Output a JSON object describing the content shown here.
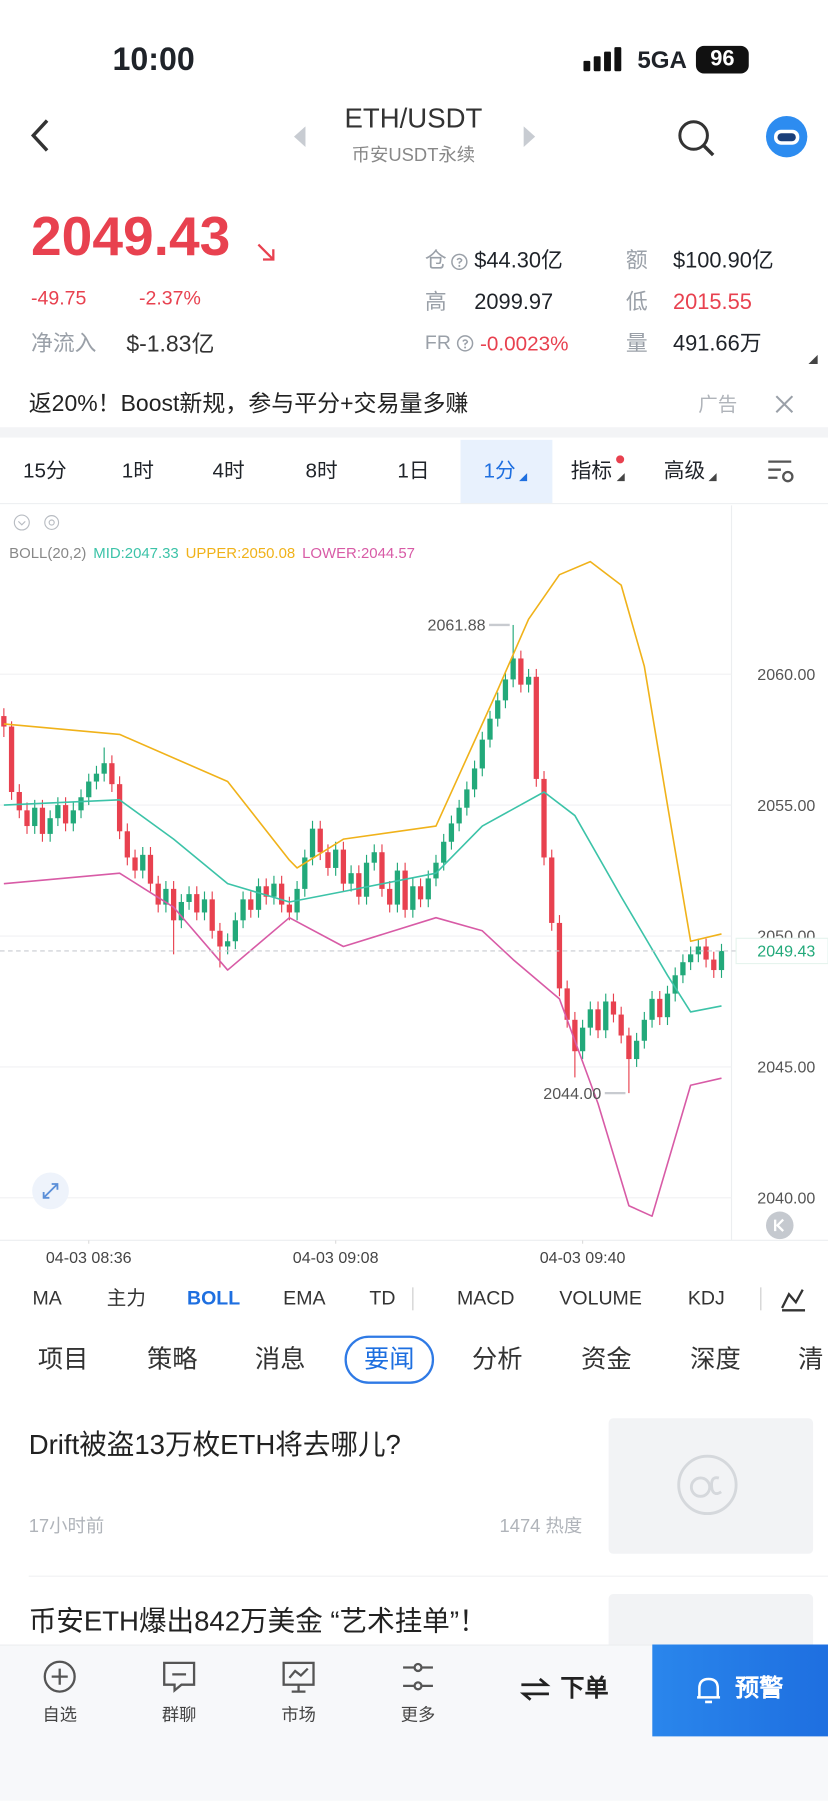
{
  "status": {
    "time": "10:00",
    "network": "5GA",
    "battery": "96"
  },
  "header": {
    "title": "ETH/USDT",
    "subtitle": "币安USDT永续"
  },
  "ticker": {
    "price": "2049.43",
    "change": "-49.75",
    "change_pct": "-2.37%",
    "inflow_label": "净流入",
    "inflow": "$-1.83亿",
    "stats": [
      {
        "label": "仓",
        "value": "$44.30亿"
      },
      {
        "label": "额",
        "value": "$100.90亿"
      },
      {
        "label": "高",
        "value": "2099.97"
      },
      {
        "label": "低",
        "value": "2015.55"
      },
      {
        "label": "FR",
        "value": "-0.0023%"
      },
      {
        "label": "量",
        "value": "491.66万"
      }
    ]
  },
  "banner": {
    "text": "返20%！Boost新规，参与平分+交易量多赚",
    "ad": "广告"
  },
  "intervals": [
    "15分",
    "1时",
    "4时",
    "8时",
    "1日",
    "1分",
    "指标",
    "高级"
  ],
  "chart": {
    "type": "candlestick",
    "indicator": "BOLL(20,2)",
    "up_color": "#22a97a",
    "down_color": "#e8414f",
    "xlim": [
      -0.5,
      94.3
    ],
    "ylim": [
      2038.38,
      2066.45
    ],
    "yticks": [
      {
        "value": 2040,
        "label": "2040.00"
      },
      {
        "value": 2045,
        "label": "2045.00"
      },
      {
        "value": 2050,
        "label": "2050.00"
      },
      {
        "value": 2055,
        "label": "2055.00"
      },
      {
        "value": 2060,
        "label": "2060.00"
      }
    ],
    "xticks": [
      {
        "value": 11,
        "label": "04-03 08:36"
      },
      {
        "value": 43,
        "label": "04-03 09:08"
      },
      {
        "value": 75,
        "label": "04-03 09:40"
      }
    ],
    "last": {
      "value": 2049.43,
      "label": "2049.43"
    },
    "high_label": "2061.88",
    "low_label": "2044.00",
    "grid": true,
    "ohlc": [
      [
        2058.4,
        2058.7,
        2057.6,
        2058.0
      ],
      [
        2058.0,
        2058.2,
        2055.2,
        2055.5
      ],
      [
        2055.5,
        2055.8,
        2054.5,
        2054.8
      ],
      [
        2054.8,
        2055.1,
        2053.9,
        2054.2
      ],
      [
        2054.2,
        2055.2,
        2053.9,
        2054.9
      ],
      [
        2054.9,
        2055.2,
        2053.6,
        2053.9
      ],
      [
        2053.9,
        2054.8,
        2053.6,
        2054.5
      ],
      [
        2054.5,
        2055.3,
        2054.2,
        2055.0
      ],
      [
        2055.0,
        2055.3,
        2054.0,
        2054.3
      ],
      [
        2054.3,
        2055.1,
        2054.0,
        2054.8
      ],
      [
        2054.8,
        2055.6,
        2054.5,
        2055.3
      ],
      [
        2055.3,
        2056.2,
        2055.0,
        2055.9
      ],
      [
        2055.9,
        2056.5,
        2055.6,
        2056.2
      ],
      [
        2056.2,
        2057.2,
        2055.9,
        2056.6
      ],
      [
        2056.6,
        2056.9,
        2055.5,
        2055.8
      ],
      [
        2055.8,
        2056.1,
        2053.7,
        2054.0
      ],
      [
        2054.0,
        2054.3,
        2052.7,
        2053.0
      ],
      [
        2053.0,
        2053.3,
        2052.2,
        2052.5
      ],
      [
        2052.5,
        2053.4,
        2052.2,
        2053.1
      ],
      [
        2053.1,
        2053.4,
        2051.7,
        2052.0
      ],
      [
        2052.0,
        2052.3,
        2050.9,
        2051.2
      ],
      [
        2051.2,
        2052.1,
        2050.9,
        2051.8
      ],
      [
        2051.8,
        2052.1,
        2049.3,
        2050.6
      ],
      [
        2050.6,
        2051.6,
        2050.3,
        2051.3
      ],
      [
        2051.3,
        2051.9,
        2051.0,
        2051.6
      ],
      [
        2051.6,
        2051.9,
        2050.6,
        2050.9
      ],
      [
        2050.9,
        2051.7,
        2050.6,
        2051.4
      ],
      [
        2051.4,
        2051.7,
        2049.9,
        2050.2
      ],
      [
        2050.2,
        2050.5,
        2048.8,
        2049.6
      ],
      [
        2049.6,
        2050.1,
        2049.3,
        2049.8
      ],
      [
        2049.8,
        2050.9,
        2049.5,
        2050.6
      ],
      [
        2050.6,
        2051.7,
        2050.3,
        2051.4
      ],
      [
        2051.4,
        2051.7,
        2050.7,
        2051.0
      ],
      [
        2051.0,
        2052.2,
        2050.7,
        2051.9
      ],
      [
        2051.9,
        2052.2,
        2051.2,
        2051.5
      ],
      [
        2051.5,
        2052.3,
        2051.2,
        2052.0
      ],
      [
        2052.0,
        2052.3,
        2050.9,
        2051.2
      ],
      [
        2051.2,
        2051.5,
        2050.6,
        2050.9
      ],
      [
        2050.9,
        2052.1,
        2050.6,
        2051.8
      ],
      [
        2051.8,
        2053.3,
        2051.5,
        2053.0
      ],
      [
        2053.0,
        2054.4,
        2052.7,
        2054.1
      ],
      [
        2054.1,
        2054.4,
        2052.9,
        2053.2
      ],
      [
        2053.2,
        2053.5,
        2052.3,
        2052.6
      ],
      [
        2052.6,
        2053.6,
        2052.3,
        2053.3
      ],
      [
        2053.3,
        2053.6,
        2051.7,
        2052.0
      ],
      [
        2052.0,
        2052.7,
        2051.7,
        2052.4
      ],
      [
        2052.4,
        2052.7,
        2051.2,
        2051.5
      ],
      [
        2051.5,
        2053.1,
        2051.2,
        2052.8
      ],
      [
        2052.8,
        2053.5,
        2052.5,
        2053.2
      ],
      [
        2053.2,
        2053.5,
        2051.5,
        2051.8
      ],
      [
        2051.8,
        2052.1,
        2050.9,
        2051.2
      ],
      [
        2051.2,
        2052.8,
        2050.9,
        2052.5
      ],
      [
        2052.5,
        2052.8,
        2050.7,
        2051.0
      ],
      [
        2051.0,
        2052.2,
        2050.7,
        2051.9
      ],
      [
        2051.9,
        2052.2,
        2051.1,
        2051.4
      ],
      [
        2051.4,
        2052.5,
        2051.1,
        2052.2
      ],
      [
        2052.2,
        2053.1,
        2051.9,
        2052.8
      ],
      [
        2052.8,
        2053.9,
        2052.5,
        2053.6
      ],
      [
        2053.6,
        2054.6,
        2053.3,
        2054.3
      ],
      [
        2054.3,
        2055.2,
        2054.0,
        2054.9
      ],
      [
        2054.9,
        2055.9,
        2054.6,
        2055.6
      ],
      [
        2055.6,
        2056.7,
        2055.3,
        2056.4
      ],
      [
        2056.4,
        2057.8,
        2056.1,
        2057.5
      ],
      [
        2057.5,
        2058.6,
        2057.2,
        2058.3
      ],
      [
        2058.3,
        2059.3,
        2058.0,
        2059.0
      ],
      [
        2059.0,
        2060.1,
        2058.7,
        2059.8
      ],
      [
        2059.8,
        2061.88,
        2059.5,
        2060.6
      ],
      [
        2060.6,
        2060.9,
        2059.3,
        2059.6
      ],
      [
        2059.6,
        2060.2,
        2059.3,
        2059.9
      ],
      [
        2059.9,
        2060.2,
        2055.7,
        2056.0
      ],
      [
        2056.0,
        2056.3,
        2052.7,
        2053.0
      ],
      [
        2053.0,
        2053.3,
        2050.2,
        2050.5
      ],
      [
        2050.5,
        2050.8,
        2047.7,
        2048.0
      ],
      [
        2048.0,
        2048.3,
        2046.5,
        2046.8
      ],
      [
        2046.8,
        2047.1,
        2044.6,
        2045.6
      ],
      [
        2045.6,
        2046.8,
        2045.3,
        2046.5
      ],
      [
        2046.5,
        2047.5,
        2046.2,
        2047.2
      ],
      [
        2047.2,
        2047.5,
        2046.1,
        2046.4
      ],
      [
        2046.4,
        2047.8,
        2046.1,
        2047.5
      ],
      [
        2047.5,
        2047.8,
        2046.7,
        2047.0
      ],
      [
        2047.0,
        2047.3,
        2045.9,
        2046.2
      ],
      [
        2046.2,
        2046.5,
        2044.0,
        2045.3
      ],
      [
        2045.3,
        2046.3,
        2045.0,
        2046.0
      ],
      [
        2046.0,
        2047.1,
        2045.7,
        2046.8
      ],
      [
        2046.8,
        2047.9,
        2046.5,
        2047.6
      ],
      [
        2047.6,
        2047.9,
        2046.6,
        2046.9
      ],
      [
        2046.9,
        2048.1,
        2046.6,
        2047.8
      ],
      [
        2047.8,
        2048.8,
        2047.5,
        2048.5
      ],
      [
        2048.5,
        2049.3,
        2048.2,
        2049.0
      ],
      [
        2049.0,
        2049.6,
        2048.7,
        2049.3
      ],
      [
        2049.3,
        2049.9,
        2049.0,
        2049.6
      ],
      [
        2049.6,
        2049.9,
        2048.8,
        2049.1
      ],
      [
        2049.1,
        2049.4,
        2048.4,
        2048.7
      ],
      [
        2048.7,
        2049.7,
        2048.4,
        2049.43
      ]
    ],
    "bands": [
      {
        "name": "MID:2047.33",
        "color": "#3cc3a8",
        "x": [
          0,
          15,
          22,
          29,
          37,
          44,
          56,
          62,
          70,
          74,
          80,
          86,
          89,
          93
        ],
        "values": [
          2055,
          2055.2,
          2053.7,
          2052,
          2051.3,
          2051.7,
          2052.4,
          2054.2,
          2055.5,
          2054.6,
          2051.5,
          2048.5,
          2047.1,
          2047.33
        ]
      },
      {
        "name": "UPPER:2050.08",
        "color": "#f0b21a",
        "x": [
          0,
          15,
          29,
          37,
          38,
          44,
          56,
          64,
          68,
          72,
          76,
          80,
          83,
          86,
          89,
          93
        ],
        "values": [
          2058.1,
          2057.7,
          2055.9,
          2052.9,
          2052.6,
          2053.7,
          2054.2,
          2059.4,
          2062.1,
          2063.8,
          2064.3,
          2063.4,
          2060.3,
          2055,
          2049.8,
          2050.08
        ]
      },
      {
        "name": "LOWER:2044.57",
        "color": "#d85ba6",
        "x": [
          0,
          15,
          22,
          29,
          37,
          44,
          56,
          62,
          66,
          72,
          77,
          81,
          84,
          89,
          93
        ],
        "values": [
          2052,
          2052.4,
          2051.1,
          2048.7,
          2050.7,
          2049.6,
          2050.7,
          2050.2,
          2049.1,
          2047.6,
          2043.6,
          2039.7,
          2039.3,
          2044.3,
          2044.57
        ]
      }
    ]
  },
  "indicators": [
    "MA",
    "主力",
    "BOLL",
    "EMA",
    "TD",
    "MACD",
    "VOLUME",
    "KDJ"
  ],
  "tabs": [
    "项目",
    "策略",
    "消息",
    "要闻",
    "分析",
    "资金",
    "深度",
    "清"
  ],
  "news": [
    {
      "title": "Drift被盗13万枚ETH将去哪儿?",
      "time": "17小时前",
      "heat": "1474 热度"
    },
    {
      "title": "币安ETH爆出842万美金 “艺术挂单”！"
    }
  ],
  "nav": [
    "自选",
    "群聊",
    "市场",
    "更多"
  ],
  "order": "下单",
  "alert": "预警"
}
